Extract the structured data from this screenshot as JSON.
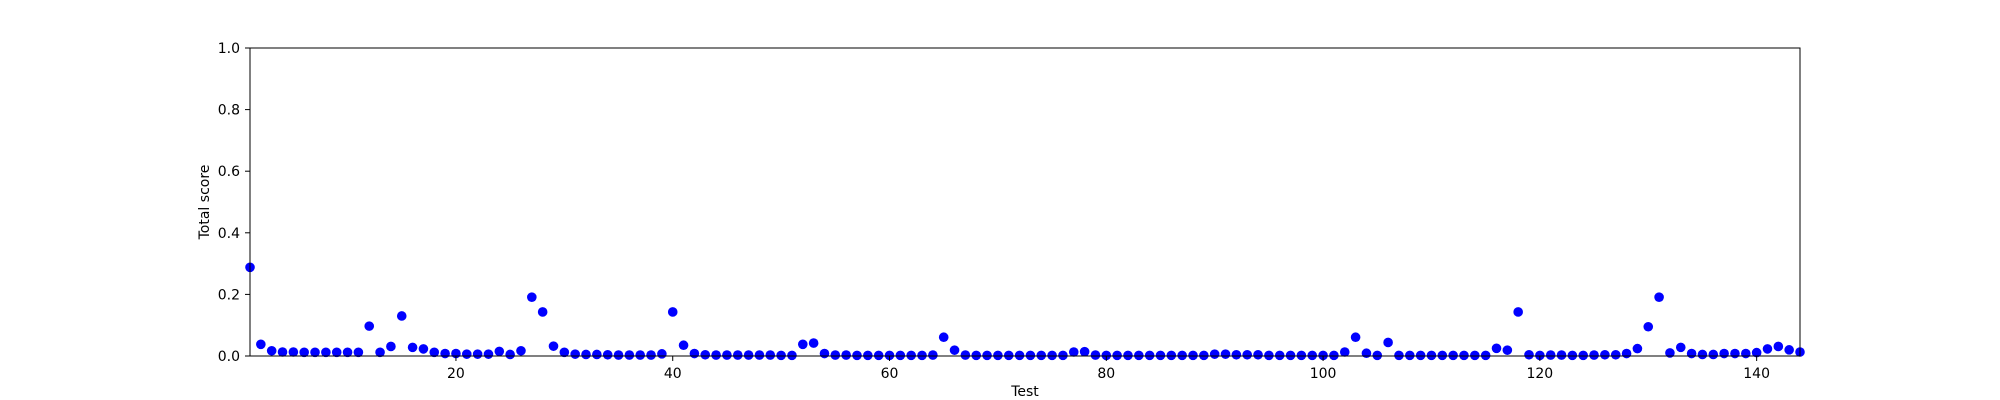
{
  "chart_data": {
    "type": "scatter",
    "title": "",
    "xlabel": "Test",
    "ylabel": "Total score",
    "xlim": [
      1,
      144
    ],
    "ylim": [
      0,
      1
    ],
    "x_ticks": [
      20,
      40,
      60,
      80,
      100,
      120,
      140
    ],
    "x_tick_labels": [
      "20",
      "40",
      "60",
      "80",
      "100",
      "120",
      "140"
    ],
    "y_ticks": [
      0,
      0.2,
      0.4,
      0.6,
      0.8,
      1.0
    ],
    "y_tick_labels": [
      "0.0",
      "0.2",
      "0.4",
      "0.6",
      "0.8",
      "1.0"
    ],
    "grid": false,
    "marker_color": "#0000ff",
    "series": [
      {
        "x": [
          1,
          2,
          3,
          4,
          5,
          6,
          7,
          8,
          9,
          10,
          11,
          12,
          13,
          14,
          15,
          16,
          17,
          18,
          19,
          20,
          21,
          22,
          23,
          24,
          25,
          26,
          27,
          28,
          29,
          30,
          31,
          32,
          33,
          34,
          35,
          36,
          37,
          38,
          39,
          40,
          41,
          42,
          43,
          44,
          45,
          46,
          47,
          48,
          49,
          50,
          51,
          52,
          53,
          54,
          55,
          56,
          57,
          58,
          59,
          60,
          61,
          62,
          63,
          64,
          65,
          66,
          67,
          68,
          69,
          70,
          71,
          72,
          73,
          74,
          75,
          76,
          77,
          78,
          79,
          80,
          81,
          82,
          83,
          84,
          85,
          86,
          87,
          88,
          89,
          90,
          91,
          92,
          93,
          94,
          95,
          96,
          97,
          98,
          99,
          100,
          101,
          102,
          103,
          104,
          105,
          106,
          107,
          108,
          109,
          110,
          111,
          112,
          113,
          114,
          115,
          116,
          117,
          118,
          119,
          120,
          121,
          122,
          123,
          124,
          125,
          126,
          127,
          128,
          129,
          130,
          131,
          132,
          133,
          134,
          135,
          136,
          137,
          138,
          139,
          140,
          141,
          142,
          143,
          144
        ],
        "y": [
          0.288,
          0.038,
          0.017,
          0.013,
          0.013,
          0.012,
          0.012,
          0.012,
          0.012,
          0.012,
          0.012,
          0.097,
          0.012,
          0.031,
          0.13,
          0.028,
          0.023,
          0.012,
          0.008,
          0.008,
          0.006,
          0.006,
          0.006,
          0.015,
          0.005,
          0.017,
          0.191,
          0.143,
          0.032,
          0.012,
          0.006,
          0.005,
          0.005,
          0.004,
          0.003,
          0.003,
          0.003,
          0.003,
          0.007,
          0.143,
          0.035,
          0.008,
          0.004,
          0.003,
          0.003,
          0.003,
          0.003,
          0.003,
          0.003,
          0.002,
          0.002,
          0.038,
          0.042,
          0.008,
          0.003,
          0.003,
          0.002,
          0.002,
          0.002,
          0.002,
          0.002,
          0.002,
          0.002,
          0.003,
          0.061,
          0.019,
          0.003,
          0.002,
          0.002,
          0.002,
          0.002,
          0.002,
          0.002,
          0.002,
          0.002,
          0.002,
          0.013,
          0.014,
          0.003,
          0.002,
          0.002,
          0.002,
          0.002,
          0.002,
          0.002,
          0.002,
          0.002,
          0.002,
          0.002,
          0.006,
          0.006,
          0.004,
          0.004,
          0.004,
          0.002,
          0.002,
          0.002,
          0.002,
          0.002,
          0.002,
          0.002,
          0.013,
          0.061,
          0.009,
          0.002,
          0.044,
          0.002,
          0.002,
          0.002,
          0.002,
          0.002,
          0.002,
          0.002,
          0.002,
          0.002,
          0.025,
          0.019,
          0.143,
          0.004,
          0.002,
          0.003,
          0.003,
          0.002,
          0.002,
          0.003,
          0.004,
          0.004,
          0.008,
          0.024,
          0.095,
          0.191,
          0.01,
          0.028,
          0.008,
          0.005,
          0.005,
          0.008,
          0.008,
          0.008,
          0.011,
          0.023,
          0.031,
          0.02,
          0.013
        ]
      }
    ]
  }
}
